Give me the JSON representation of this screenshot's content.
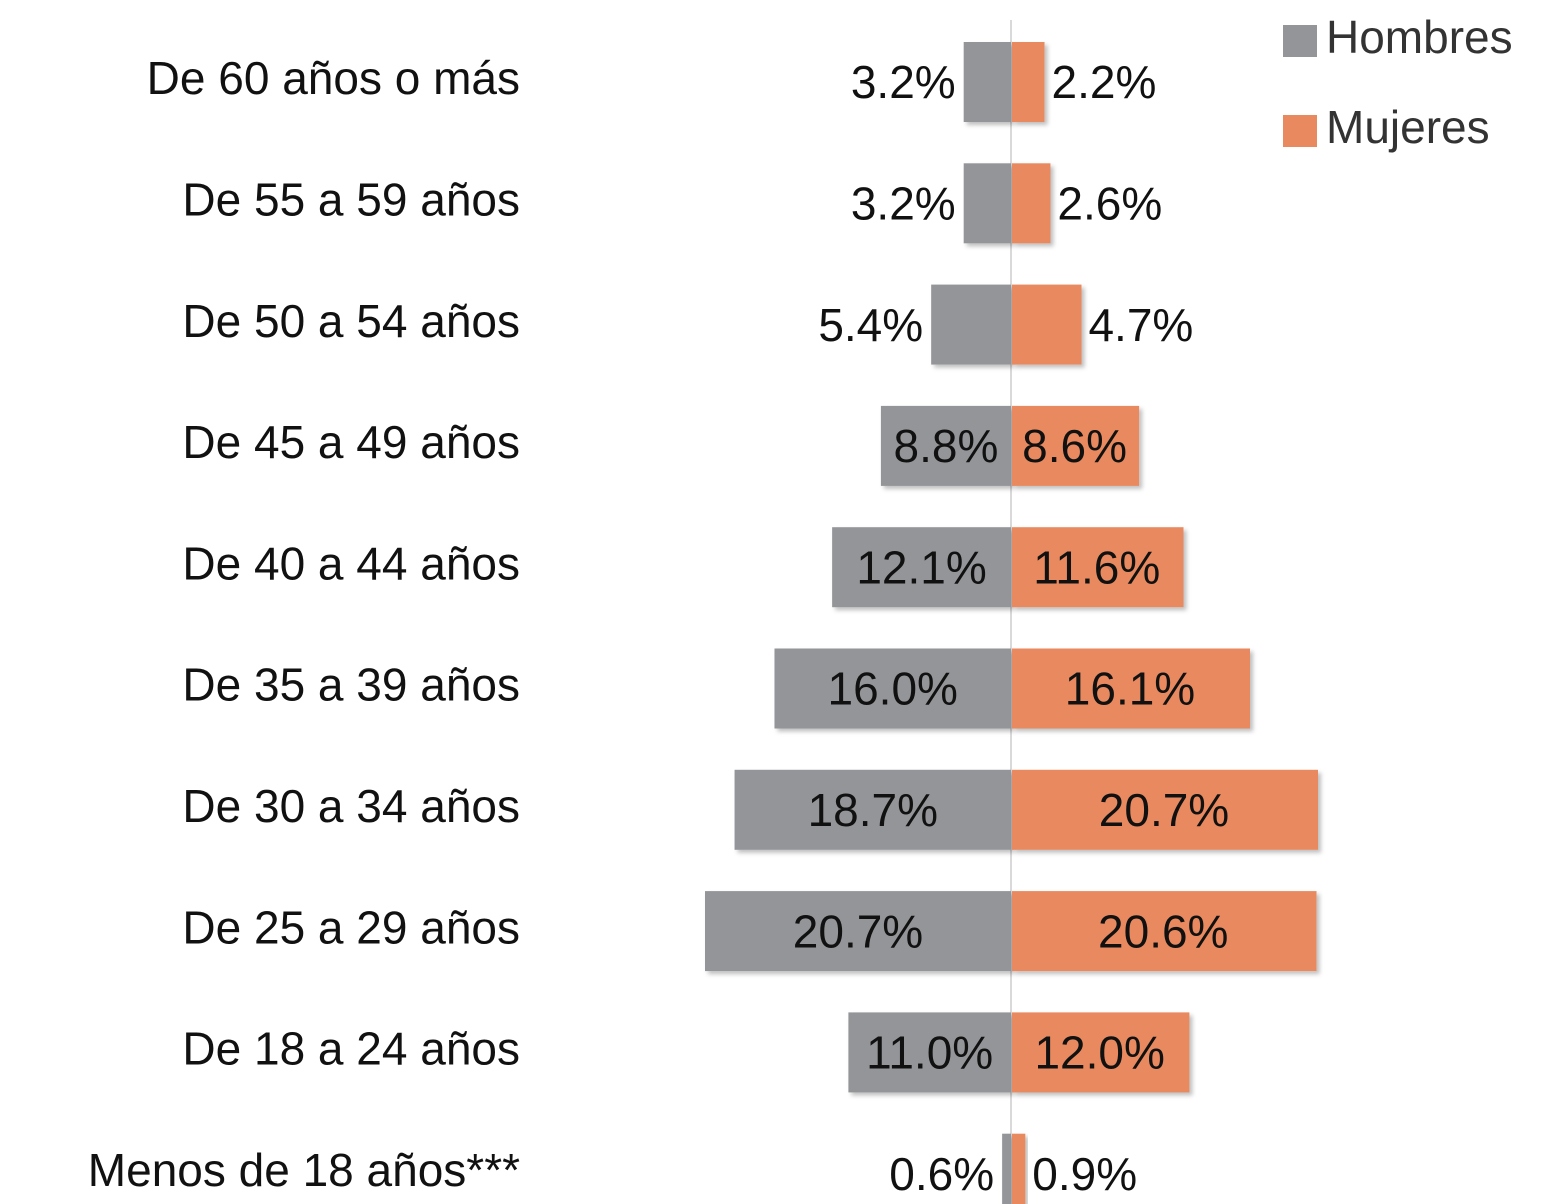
{
  "chart_data": {
    "type": "pyramid",
    "categories": [
      "De 60 años o más",
      "De 55 a 59 años",
      "De 50 a 54 años",
      "De 45 a 49 años",
      "De 40 a 44 años",
      "De 35 a 39 años",
      "De 30 a 34 años",
      "De 25 a 29 años",
      "De 18 a 24 años",
      "Menos de 18 años***"
    ],
    "series": [
      {
        "name": "Hombres",
        "color": "#939598",
        "values": [
          3.2,
          3.2,
          5.4,
          8.8,
          12.1,
          16.0,
          18.7,
          20.7,
          11.0,
          0.6
        ],
        "value_labels": [
          "3.2%",
          "3.2%",
          "5.4%",
          "8.8%",
          "12.1%",
          "16.0%",
          "18.7%",
          "20.7%",
          "11.0%",
          "0.6%"
        ]
      },
      {
        "name": "Mujeres",
        "color": "#e8895f",
        "values": [
          2.2,
          2.6,
          4.7,
          8.6,
          11.6,
          16.1,
          20.7,
          20.6,
          12.0,
          0.9
        ],
        "value_labels": [
          "2.2%",
          "2.6%",
          "4.7%",
          "8.6%",
          "11.6%",
          "16.1%",
          "20.7%",
          "20.6%",
          "12.0%",
          "0.9%"
        ]
      }
    ],
    "legend": "top-right"
  }
}
